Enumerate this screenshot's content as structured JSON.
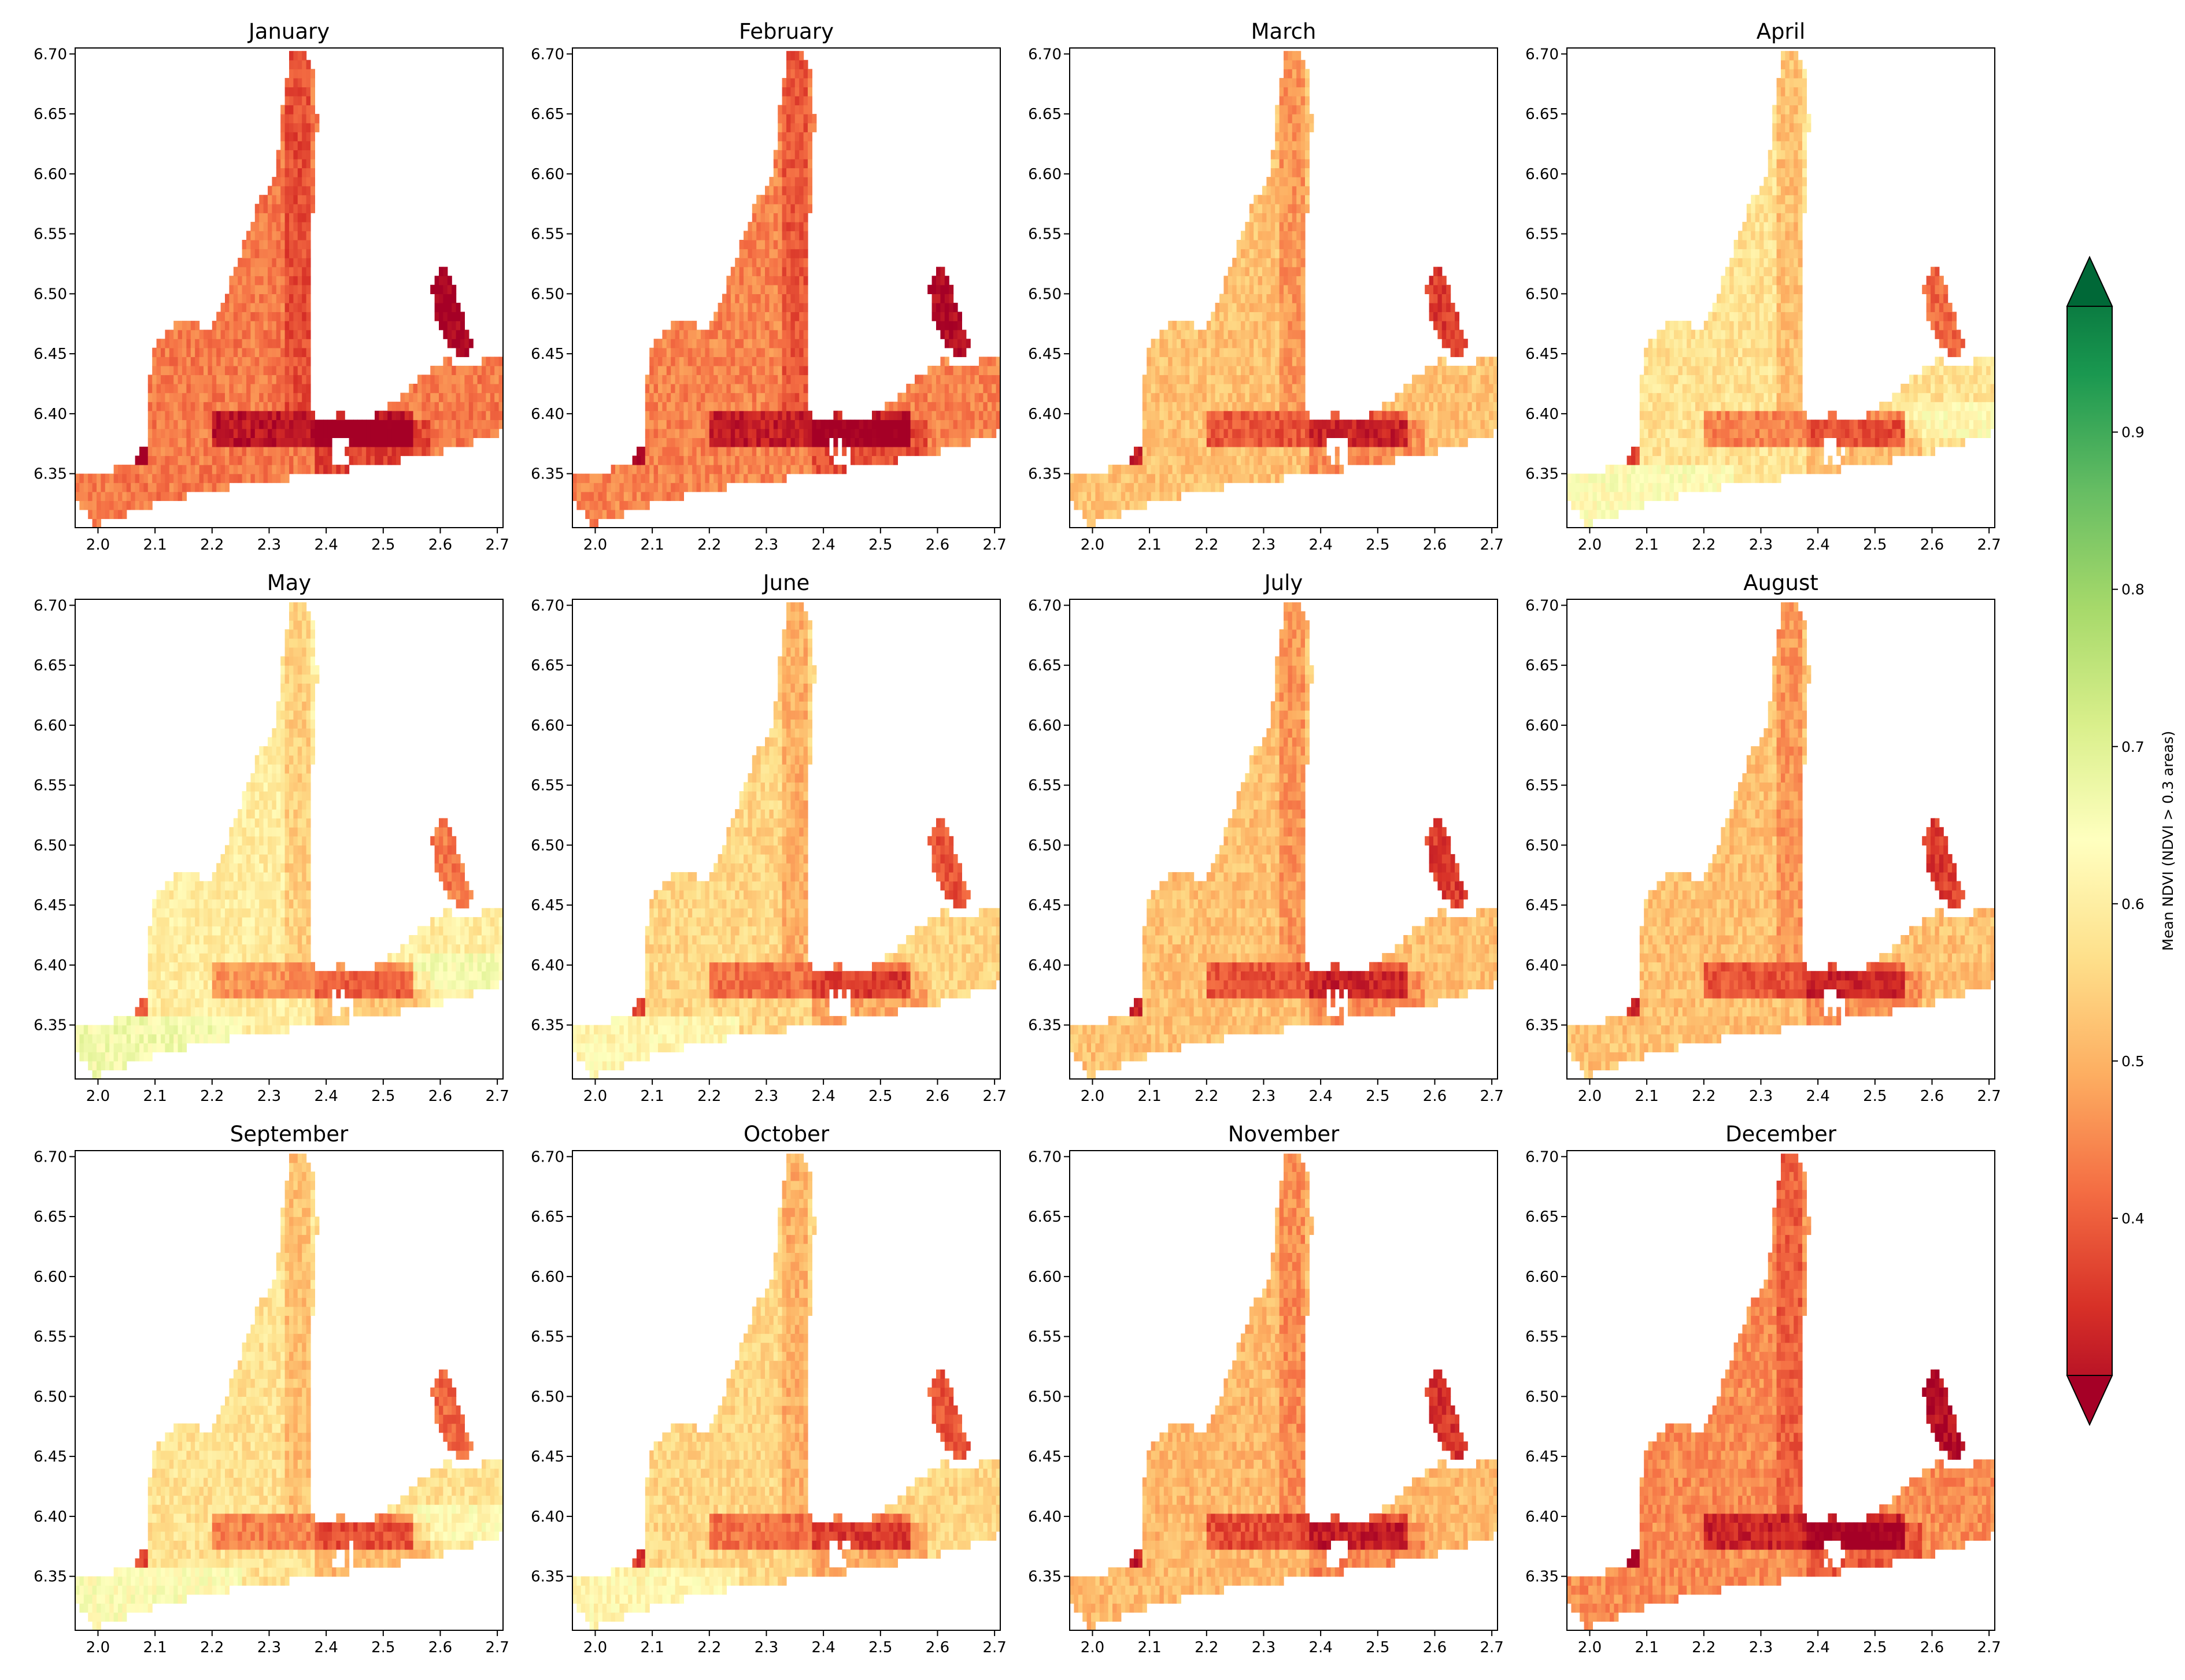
{
  "figure": {
    "panels": [
      {
        "title": "January"
      },
      {
        "title": "February"
      },
      {
        "title": "March"
      },
      {
        "title": "April"
      },
      {
        "title": "May"
      },
      {
        "title": "June"
      },
      {
        "title": "July"
      },
      {
        "title": "August"
      },
      {
        "title": "September"
      },
      {
        "title": "October"
      },
      {
        "title": "November"
      },
      {
        "title": "December"
      }
    ],
    "x_axis": {
      "range": [
        1.96,
        2.71
      ],
      "ticks": [
        2.0,
        2.1,
        2.2,
        2.3,
        2.4,
        2.5,
        2.6,
        2.7
      ],
      "tick_labels": [
        "2.0",
        "2.1",
        "2.2",
        "2.3",
        "2.4",
        "2.5",
        "2.6",
        "2.7"
      ]
    },
    "y_axis": {
      "range": [
        6.305,
        6.705
      ],
      "ticks": [
        6.35,
        6.4,
        6.45,
        6.5,
        6.55,
        6.6,
        6.65,
        6.7
      ],
      "tick_labels": [
        "6.35",
        "6.40",
        "6.45",
        "6.50",
        "6.55",
        "6.60",
        "6.65",
        "6.70"
      ]
    },
    "colorbar": {
      "label": "Mean NDVI (NDVI > 0.3 areas)",
      "range": [
        0.3,
        0.98
      ],
      "extend": "both",
      "colormap": "RdYlGn",
      "ticks": [
        0.4,
        0.5,
        0.6,
        0.7,
        0.8,
        0.9
      ],
      "tick_labels": [
        "0.4",
        "0.5",
        "0.6",
        "0.7",
        "0.8",
        "0.9"
      ],
      "stops": [
        "#a50026",
        "#d73027",
        "#f46d43",
        "#fdae61",
        "#fee08b",
        "#ffffbf",
        "#d9ef8b",
        "#a6d96a",
        "#66bd63",
        "#1a9850",
        "#006837"
      ]
    }
  },
  "chart_data": {
    "type": "heatmap",
    "layout": "3x4 monthly small multiples",
    "x_range": [
      1.96,
      2.71
    ],
    "y_range": [
      6.305,
      6.705
    ],
    "colorbar_label": "Mean NDVI (NDVI > 0.3 areas)",
    "series": [
      {
        "name": "January",
        "typical_ndvi": 0.45
      },
      {
        "name": "February",
        "typical_ndvi": 0.46
      },
      {
        "name": "March",
        "typical_ndvi": 0.53
      },
      {
        "name": "April",
        "typical_ndvi": 0.58
      },
      {
        "name": "May",
        "typical_ndvi": 0.6
      },
      {
        "name": "June",
        "typical_ndvi": 0.56
      },
      {
        "name": "July",
        "typical_ndvi": 0.53
      },
      {
        "name": "August",
        "typical_ndvi": 0.53
      },
      {
        "name": "September",
        "typical_ndvi": 0.58
      },
      {
        "name": "October",
        "typical_ndvi": 0.56
      },
      {
        "name": "November",
        "typical_ndvi": 0.52
      },
      {
        "name": "December",
        "typical_ndvi": 0.47
      }
    ]
  }
}
